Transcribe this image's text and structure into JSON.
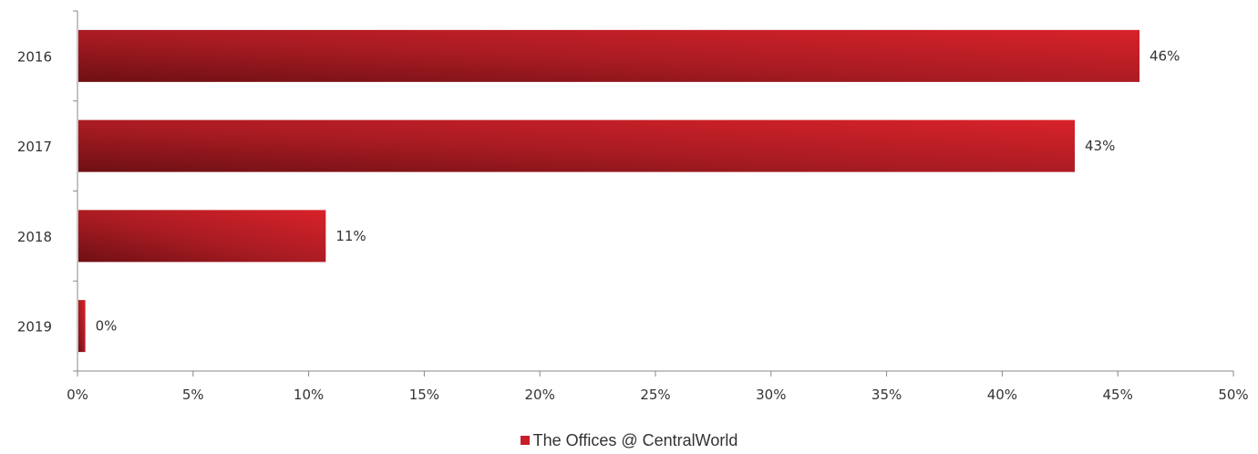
{
  "chart_data": {
    "type": "bar",
    "orientation": "horizontal",
    "categories": [
      "2016",
      "2017",
      "2018",
      "2019"
    ],
    "series": [
      {
        "name": "The Offices @ CentralWorld",
        "values": [
          45.9,
          43.1,
          10.7,
          0.3
        ],
        "data_labels": [
          "46%",
          "43%",
          "11%",
          "0%"
        ],
        "color": "#c81e28"
      }
    ],
    "x_ticks": [
      "0%",
      "5%",
      "10%",
      "15%",
      "20%",
      "25%",
      "30%",
      "35%",
      "40%",
      "45%",
      "50%"
    ],
    "xlim": [
      0,
      50
    ],
    "grid": false,
    "legend_position": "bottom"
  }
}
